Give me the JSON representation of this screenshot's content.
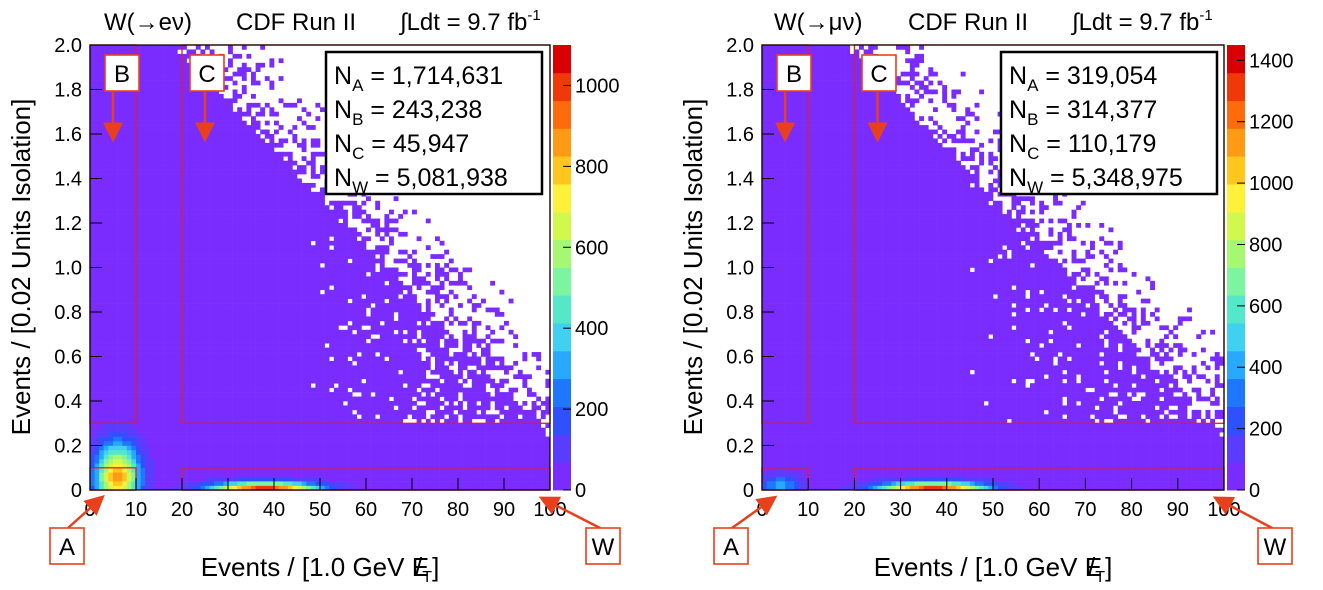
{
  "chart_data": [
    {
      "type": "heatmap",
      "title": "W(→eν)   CDF Run II   ∫Ldt = 9.7 fb⁻¹",
      "title_parts": {
        "process": "W(→eν)",
        "experiment": "CDF Run II",
        "lumi": "∫Ldt = 9.7 fb",
        "lumi_exp": "-1"
      },
      "xlabel": "Events / [1.0 GeV E̸T]",
      "ylabel": "Events / [0.02 Units Isolation]",
      "xlim": [
        0,
        100
      ],
      "ylim": [
        0,
        2.0
      ],
      "x_ticks": [
        "0",
        "10",
        "20",
        "30",
        "40",
        "50",
        "60",
        "70",
        "80",
        "90",
        "100"
      ],
      "y_ticks": [
        "0",
        "0.2",
        "0.4",
        "0.6",
        "0.8",
        "1.0",
        "1.2",
        "1.4",
        "1.6",
        "1.8",
        "2.0"
      ],
      "color_scale": {
        "min": 0,
        "max": 1100,
        "ticks": [
          "0",
          "200",
          "400",
          "600",
          "800",
          "1000"
        ]
      },
      "regions": {
        "A": {
          "x": [
            0,
            10
          ],
          "y": [
            0,
            0.1
          ]
        },
        "B": {
          "x": [
            0,
            10
          ],
          "y": [
            0.3,
            2.0
          ]
        },
        "C": {
          "x": [
            20,
            100
          ],
          "y": [
            0.3,
            2.0
          ]
        },
        "W": {
          "x": [
            20,
            100
          ],
          "y": [
            0,
            0.1
          ]
        }
      },
      "region_labels": [
        "A",
        "B",
        "C",
        "W"
      ],
      "counts": [
        {
          "label": "N",
          "sub": "A",
          "value": "1,714,631"
        },
        {
          "label": "N",
          "sub": "B",
          "value": "243,238"
        },
        {
          "label": "N",
          "sub": "C",
          "value": "45,947"
        },
        {
          "label": "N",
          "sub": "W",
          "value": "5,081,938"
        }
      ],
      "peak": {
        "x": 38,
        "y": 0.02
      }
    },
    {
      "type": "heatmap",
      "title": "W(→μν)   CDF Run II   ∫Ldt = 9.7 fb⁻¹",
      "title_parts": {
        "process": "W(→μν)",
        "experiment": "CDF Run II",
        "lumi": "∫Ldt = 9.7 fb",
        "lumi_exp": "-1"
      },
      "xlabel": "Events / [1.0 GeV E̸T]",
      "ylabel": "Events / [0.02 Units Isolation]",
      "xlim": [
        0,
        100
      ],
      "ylim": [
        0,
        2.0
      ],
      "x_ticks": [
        "0",
        "10",
        "20",
        "30",
        "40",
        "50",
        "60",
        "70",
        "80",
        "90",
        "100"
      ],
      "y_ticks": [
        "0",
        "0.2",
        "0.4",
        "0.6",
        "0.8",
        "1.0",
        "1.2",
        "1.4",
        "1.6",
        "1.8",
        "2.0"
      ],
      "color_scale": {
        "min": 0,
        "max": 1450,
        "ticks": [
          "0",
          "200",
          "400",
          "600",
          "800",
          "1000",
          "1200",
          "1400"
        ]
      },
      "regions": {
        "A": {
          "x": [
            0,
            10
          ],
          "y": [
            0,
            0.1
          ]
        },
        "B": {
          "x": [
            0,
            10
          ],
          "y": [
            0.3,
            2.0
          ]
        },
        "C": {
          "x": [
            20,
            100
          ],
          "y": [
            0.3,
            2.0
          ]
        },
        "W": {
          "x": [
            20,
            100
          ],
          "y": [
            0,
            0.1
          ]
        }
      },
      "region_labels": [
        "A",
        "B",
        "C",
        "W"
      ],
      "counts": [
        {
          "label": "N",
          "sub": "A",
          "value": "319,054"
        },
        {
          "label": "N",
          "sub": "B",
          "value": "314,377"
        },
        {
          "label": "N",
          "sub": "C",
          "value": "110,179"
        },
        {
          "label": "N",
          "sub": "W",
          "value": "5,348,975"
        }
      ],
      "peak": {
        "x": 37,
        "y": 0.01
      }
    }
  ],
  "colors": {
    "background_bin": "#7a2cff",
    "region_lines": "#e02020",
    "arrow": "#e8401c",
    "palette": [
      "#7a2cff",
      "#5a3cff",
      "#2e50ff",
      "#1e78ff",
      "#28a8ff",
      "#40d0f0",
      "#55e8c8",
      "#7cf4a0",
      "#a4f872",
      "#d2f84e",
      "#fff03a",
      "#ffc61e",
      "#ff9a14",
      "#ff6a0c",
      "#f03808",
      "#d80000"
    ]
  }
}
